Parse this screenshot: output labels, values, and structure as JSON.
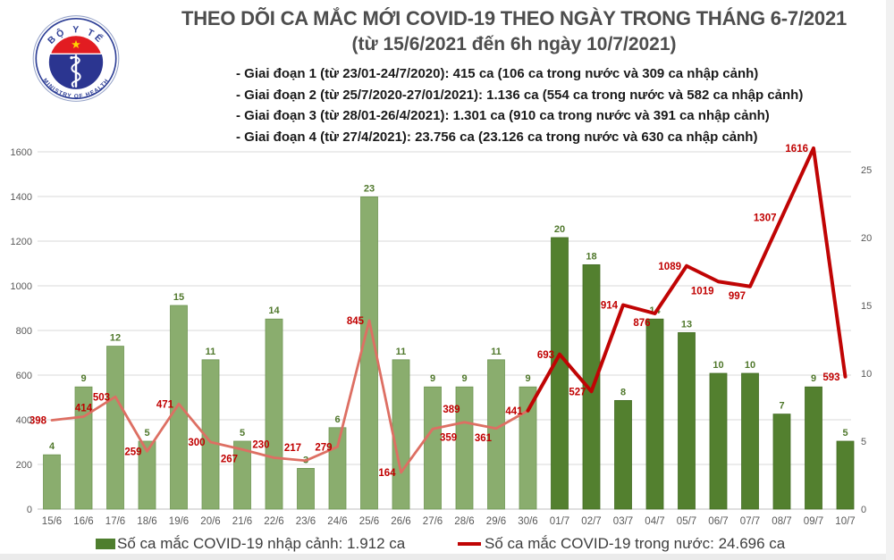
{
  "header": {
    "title_line1": "THEO DÕI CA MẮC MỚI COVID-19 THEO NGÀY TRONG THÁNG 6-7/2021",
    "title_line2": "(từ 15/6/2021 đến 6h ngày 10/7/2021)",
    "logo": {
      "top_text": "BỘ Y TẾ",
      "bottom_text": "MINISTRY OF HEALTH"
    },
    "bullets": [
      "- Giai đoạn 1 (từ 23/01-24/7/2020): 415 ca (106 ca trong nước và 309 ca nhập cảnh)",
      "- Giai đoạn 2 (từ 25/7/2020-27/01/2021): 1.136 ca (554 ca trong nước và 582 ca nhập cảnh)",
      "- Giai đoạn 3 (từ 28/01-26/4/2021): 1.301 ca (910 ca trong nước và 391 ca nhập cảnh)",
      "- Giai đoạn 4 (từ 27/4/2021): 23.756 ca (23.126 ca trong nước và 630 ca nhập cảnh)"
    ]
  },
  "legend": {
    "bar_label": "Số ca mắc COVID-19 nhập cảnh: 1.912 ca",
    "line_label": "Số ca mắc COVID-19 trong nước: 24.696 ca"
  },
  "colors": {
    "bar_june": "#8aad6e",
    "bar_june_border": "#6f9553",
    "bar_july": "#53802f",
    "bar_july_border": "#446c24",
    "line_june": "#dd6f63",
    "line_july": "#c00404",
    "line_label": "#c00000",
    "bar_label": "#50782c",
    "axis_text": "#595959",
    "grid": "#d9d9d9",
    "baseline": "#bfbfbf",
    "legend_bar_swatch": "#4e7e2e",
    "legend_line_swatch": "#c00404",
    "logo_blue": "#2e3f96",
    "logo_red": "#e21c21",
    "logo_star": "#ffd500"
  },
  "chart_data": {
    "type": "bar+line",
    "title": "THEO DÕI CA MẮC MỚI COVID-19 THEO NGÀY TRONG THÁNG 6-7/2021",
    "categories": [
      "15/6",
      "16/6",
      "17/6",
      "18/6",
      "19/6",
      "20/6",
      "21/6",
      "22/6",
      "23/6",
      "24/6",
      "25/6",
      "26/6",
      "27/6",
      "28/6",
      "29/6",
      "30/6",
      "01/7",
      "02/7",
      "03/7",
      "04/7",
      "05/7",
      "06/7",
      "07/7",
      "08/7",
      "09/7",
      "10/7"
    ],
    "series": [
      {
        "name": "Số ca mắc COVID-19 nhập cảnh",
        "type": "bar",
        "axis": "right",
        "values": [
          4,
          9,
          12,
          5,
          15,
          11,
          5,
          14,
          3,
          6,
          23,
          11,
          9,
          9,
          11,
          9,
          20,
          18,
          8,
          14,
          13,
          10,
          10,
          7,
          9,
          5
        ]
      },
      {
        "name": "Số ca mắc COVID-19 trong nước",
        "type": "line",
        "axis": "left",
        "values": [
          398,
          414,
          503,
          259,
          471,
          300,
          267,
          230,
          217,
          279,
          845,
          164,
          359,
          389,
          361,
          441,
          693,
          527,
          914,
          876,
          1089,
          1019,
          997,
          1307,
          1616,
          593
        ]
      }
    ],
    "line_label_pos": [
      "left",
      "above",
      "left",
      "left",
      "left",
      "left",
      "below-left",
      "above-left",
      "above-left",
      "left",
      "left",
      "left",
      "below-right",
      "above-left",
      "below-left",
      "left",
      "left",
      "left",
      "left",
      "below-left",
      "left",
      "below-left",
      "below-left",
      "left",
      "left",
      "left"
    ],
    "left_axis": {
      "min": 0,
      "max": 1600,
      "step": 200
    },
    "right_axis": {
      "min": 0,
      "max": 25,
      "step": 5
    },
    "style_split_index": 16,
    "grid": "on",
    "legend_position": "bottom"
  }
}
